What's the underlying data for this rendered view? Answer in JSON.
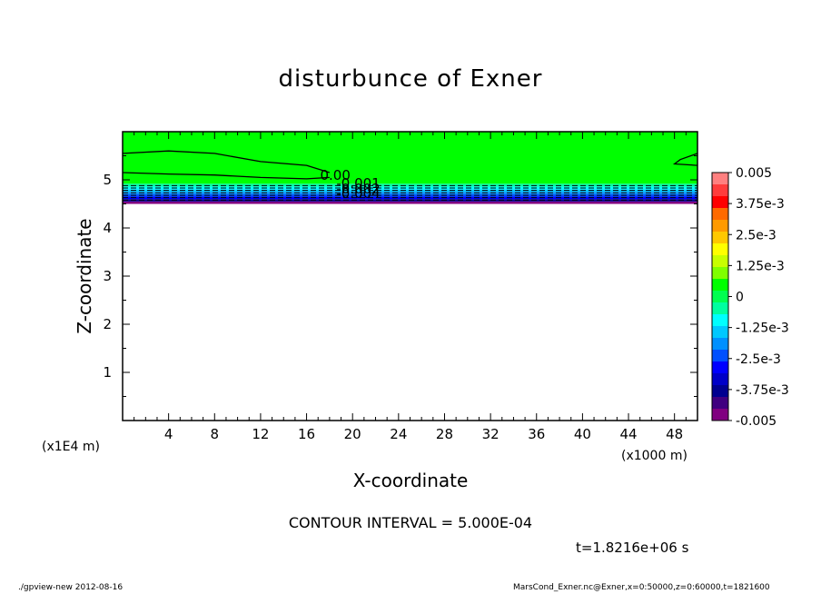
{
  "title": "disturbunce of Exner",
  "contour_interval_label": "CONTOUR INTERVAL = 5.000E-04",
  "time_label": "t=1.8216e+06 s",
  "footer": {
    "left": "./gpview-new   2012-08-16",
    "right": "MarsCond_Exner.nc@Exner,x=0:50000,z=0:60000,t=1821600"
  },
  "chart_data": {
    "type": "heatmap",
    "title": "disturbunce of Exner",
    "xlabel": "X-coordinate",
    "ylabel": "Z-coordinate",
    "x_unit_label": "(x1000 m)",
    "y_unit_label": "(x1E4 m)",
    "xlim": [
      0,
      50
    ],
    "ylim": [
      0,
      6
    ],
    "x_ticks": [
      4,
      8,
      12,
      16,
      20,
      24,
      28,
      32,
      36,
      40,
      44,
      48
    ],
    "y_ticks": [
      1,
      2,
      3,
      4,
      5
    ],
    "contour_labels": [
      "0.00",
      "-0.001",
      "-0.002",
      "-0.004"
    ],
    "colorbar": {
      "range": [
        -0.005,
        0.005
      ],
      "tick_labels": [
        "0.005",
        "3.75e-3",
        "2.5e-3",
        "1.25e-3",
        "0",
        "-1.25e-3",
        "-2.5e-3",
        "-3.75e-3",
        "-0.005"
      ],
      "colors": [
        "#ff8080",
        "#ff3c3c",
        "#ff0000",
        "#ff6a00",
        "#ff9a00",
        "#ffc800",
        "#ffff00",
        "#c8ff00",
        "#80ff00",
        "#00ff00",
        "#00ff50",
        "#00ffa0",
        "#00ffff",
        "#00c8ff",
        "#0090ff",
        "#0050ff",
        "#0000ff",
        "#0000c8",
        "#000090",
        "#400080",
        "#800080"
      ]
    },
    "data_region": {
      "z_bottom": 4.5,
      "z_top": 6.0
    },
    "bands": [
      {
        "z0": 4.5,
        "z1": 4.55,
        "color": "#800080"
      },
      {
        "z0": 4.55,
        "z1": 4.6,
        "color": "#000090"
      },
      {
        "z0": 4.6,
        "z1": 4.65,
        "color": "#0000ff"
      },
      {
        "z0": 4.65,
        "z1": 4.7,
        "color": "#0050ff"
      },
      {
        "z0": 4.7,
        "z1": 4.75,
        "color": "#0090ff"
      },
      {
        "z0": 4.75,
        "z1": 4.8,
        "color": "#00c8ff"
      },
      {
        "z0": 4.8,
        "z1": 4.86,
        "color": "#00ffff"
      },
      {
        "z0": 4.86,
        "z1": 4.92,
        "color": "#00ffa0"
      },
      {
        "z0": 4.92,
        "z1": 6.0,
        "color": "#00ff00"
      }
    ],
    "dashed_contours_z": [
      4.58,
      4.63,
      4.68,
      4.73,
      4.78,
      4.83,
      4.88
    ],
    "solid_contours": [
      [
        [
          0,
          5.55
        ],
        [
          4,
          5.6
        ],
        [
          8,
          5.55
        ],
        [
          12,
          5.38
        ],
        [
          16,
          5.3
        ],
        [
          18,
          5.15
        ]
      ],
      [
        [
          0,
          5.15
        ],
        [
          4,
          5.12
        ],
        [
          8,
          5.1
        ],
        [
          12,
          5.05
        ],
        [
          16,
          5.02
        ],
        [
          18,
          5.05
        ]
      ],
      [
        [
          50,
          5.55
        ],
        [
          48.5,
          5.42
        ],
        [
          48,
          5.33
        ],
        [
          50,
          5.3
        ]
      ]
    ]
  }
}
